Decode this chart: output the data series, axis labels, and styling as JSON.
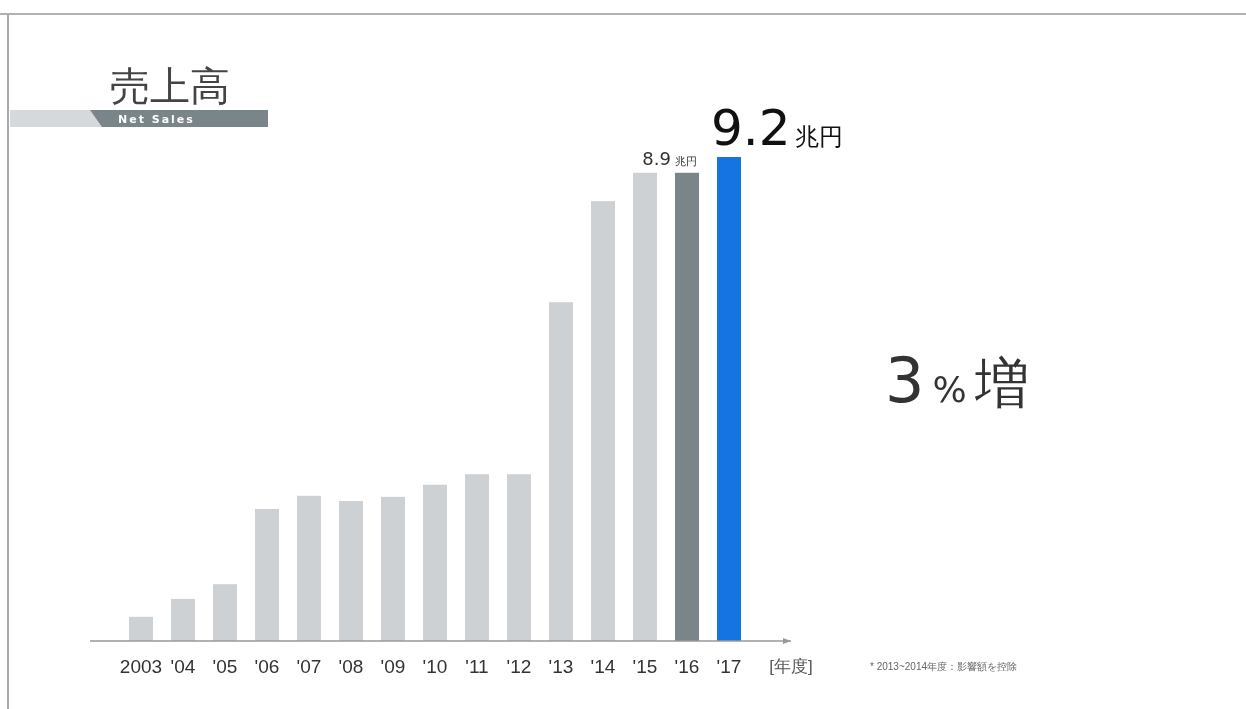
{
  "chart_data": {
    "type": "bar",
    "title": "売上高",
    "subtitle": "Net Sales",
    "xlabel": "[年度]",
    "categories": [
      "2003",
      "'04",
      "'05",
      "'06",
      "'07",
      "'08",
      "'09",
      "'10",
      "'11",
      "'12",
      "'13",
      "'14",
      "'15",
      "'16",
      "'17"
    ],
    "values": [
      0.46,
      0.8,
      1.08,
      2.51,
      2.76,
      2.66,
      2.74,
      2.97,
      3.17,
      3.17,
      6.44,
      8.36,
      8.9,
      8.9,
      9.2
    ],
    "colors": [
      "#cdd1d4",
      "#cdd1d4",
      "#cdd1d4",
      "#cdd1d4",
      "#cdd1d4",
      "#cdd1d4",
      "#cdd1d4",
      "#cdd1d4",
      "#cdd1d4",
      "#cdd1d4",
      "#cdd1d4",
      "#cdd1d4",
      "#cdd1d4",
      "#7a8589",
      "#1673e2"
    ],
    "value_labels": [
      null,
      null,
      null,
      null,
      null,
      null,
      null,
      null,
      null,
      null,
      null,
      null,
      null,
      "8.9兆円",
      "9.2兆円"
    ],
    "annotations": [
      "3%増",
      "* 2013~2014年度：影響額を控除"
    ]
  }
}
